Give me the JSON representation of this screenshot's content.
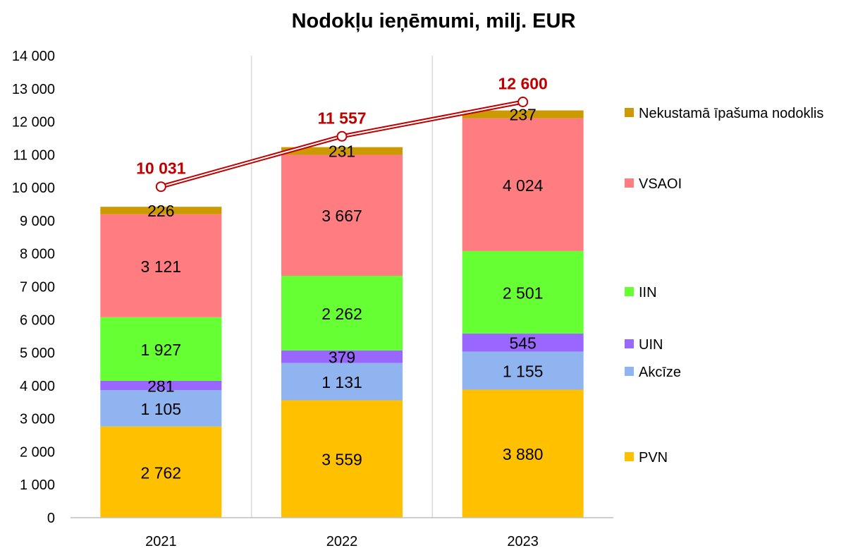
{
  "chart_data": {
    "type": "bar",
    "stacked": true,
    "title": "Nodokļu ieņēmumi, milj. EUR",
    "xlabel": "",
    "ylabel": "",
    "ylim": [
      0,
      14000
    ],
    "y_ticks": [
      "0",
      "1 000",
      "2 000",
      "3 000",
      "4 000",
      "5 000",
      "6 000",
      "7 000",
      "8 000",
      "9 000",
      "10 000",
      "11 000",
      "12 000",
      "13 000",
      "14 000"
    ],
    "grid": "vertical only",
    "legend_position": "right",
    "categories": [
      "2021",
      "2022",
      "2023"
    ],
    "series": [
      {
        "name": "PVN",
        "color": "#FFC000",
        "values": [
          2762,
          3559,
          3880
        ],
        "labels": [
          "2 762",
          "3 559",
          "3 880"
        ]
      },
      {
        "name": "Akcīze",
        "color": "#8FB4F0",
        "values": [
          1105,
          1131,
          1155
        ],
        "labels": [
          "1 105",
          "1 131",
          "1 155"
        ]
      },
      {
        "name": "UIN",
        "color": "#9966FF",
        "values": [
          281,
          379,
          545
        ],
        "labels": [
          "281",
          "379",
          "545"
        ]
      },
      {
        "name": "IIN",
        "color": "#66FF33",
        "values": [
          1927,
          2262,
          2501
        ],
        "labels": [
          "1 927",
          "2 262",
          "2 501"
        ]
      },
      {
        "name": "VSAOI",
        "color": "#FF7C80",
        "values": [
          3121,
          3667,
          4024
        ],
        "labels": [
          "3 121",
          "3 667",
          "4 024"
        ]
      },
      {
        "name": "Nekustamā īpašuma nodoklis",
        "color": "#CC9900",
        "values": [
          226,
          231,
          237
        ],
        "labels": [
          "226",
          "231",
          "237"
        ]
      }
    ],
    "line_series": {
      "color": "#C00000",
      "values": [
        10031,
        11557,
        12600
      ],
      "labels": [
        "10 031",
        "11 557",
        "12 600"
      ]
    }
  }
}
